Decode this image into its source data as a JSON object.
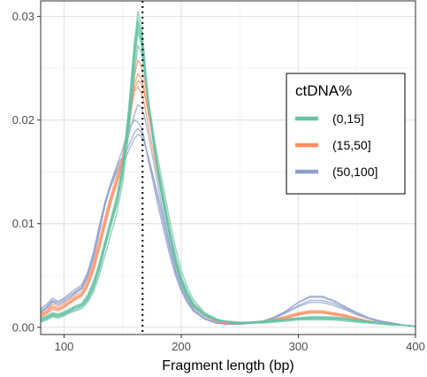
{
  "chart_data": {
    "type": "line",
    "title": "",
    "xlabel": "Fragment length (bp)",
    "ylabel": "",
    "xlim": [
      80,
      400
    ],
    "ylim": [
      -0.0007,
      0.0315
    ],
    "x_ticks": [
      100,
      200,
      300,
      400
    ],
    "y_ticks": [
      0.0,
      0.01,
      0.02,
      0.03
    ],
    "x_tick_labels": [
      "100",
      "200",
      "300",
      "400"
    ],
    "y_tick_labels": [
      "0.00",
      "0.01",
      "0.02",
      "0.03"
    ],
    "grid": true,
    "reference_line": {
      "x": 167,
      "style": "dotted",
      "color": "#000000"
    },
    "legend": {
      "title": "ctDNA%",
      "placement": "right-inside",
      "entries": [
        {
          "label": "(0,15]",
          "color": "#66c2a5"
        },
        {
          "label": "(15,50]",
          "color": "#fc8d62"
        },
        {
          "label": "(50,100]",
          "color": "#8da0cb"
        }
      ]
    },
    "x": [
      80,
      85,
      90,
      95,
      100,
      105,
      110,
      115,
      120,
      125,
      130,
      135,
      140,
      145,
      150,
      155,
      160,
      163,
      166,
      168,
      170,
      173,
      176,
      180,
      185,
      190,
      195,
      200,
      205,
      210,
      220,
      230,
      240,
      250,
      260,
      270,
      280,
      290,
      300,
      310,
      320,
      330,
      340,
      350,
      360,
      370,
      380,
      390,
      400
    ],
    "series": [
      {
        "group": "(0,15]",
        "values": [
          0.0007,
          0.0009,
          0.0012,
          0.0011,
          0.0013,
          0.0016,
          0.0019,
          0.0021,
          0.0028,
          0.004,
          0.0058,
          0.008,
          0.01,
          0.012,
          0.015,
          0.02,
          0.0265,
          0.0295,
          0.028,
          0.026,
          0.0235,
          0.0205,
          0.018,
          0.015,
          0.012,
          0.009,
          0.0065,
          0.0045,
          0.0032,
          0.0022,
          0.0012,
          0.0007,
          0.0005,
          0.0004,
          0.0004,
          0.0005,
          0.0006,
          0.0007,
          0.0008,
          0.0009,
          0.0009,
          0.0009,
          0.0008,
          0.0006,
          0.0005,
          0.0004,
          0.0003,
          0.0002,
          0.0001
        ]
      },
      {
        "group": "(0,15]",
        "values": [
          0.0006,
          0.0008,
          0.0011,
          0.001,
          0.0012,
          0.0015,
          0.0017,
          0.002,
          0.0026,
          0.0037,
          0.0055,
          0.0077,
          0.0098,
          0.0118,
          0.0148,
          0.0195,
          0.0255,
          0.0285,
          0.0272,
          0.0255,
          0.0232,
          0.0205,
          0.0182,
          0.0155,
          0.0126,
          0.0096,
          0.007,
          0.0049,
          0.0035,
          0.0024,
          0.0013,
          0.0008,
          0.0005,
          0.0004,
          0.0004,
          0.0005,
          0.0006,
          0.0007,
          0.0008,
          0.0008,
          0.0008,
          0.0008,
          0.0007,
          0.0006,
          0.0005,
          0.0004,
          0.0003,
          0.0002,
          0.0001
        ]
      },
      {
        "group": "(0,15]",
        "values": [
          0.0008,
          0.001,
          0.0013,
          0.0012,
          0.0014,
          0.0017,
          0.002,
          0.0022,
          0.003,
          0.0042,
          0.006,
          0.0082,
          0.0103,
          0.0124,
          0.0155,
          0.0205,
          0.027,
          0.0305,
          0.0292,
          0.027,
          0.0242,
          0.021,
          0.0183,
          0.015,
          0.0118,
          0.0087,
          0.0062,
          0.0043,
          0.003,
          0.002,
          0.0011,
          0.0007,
          0.0005,
          0.0004,
          0.0005,
          0.0006,
          0.0007,
          0.0008,
          0.0009,
          0.001,
          0.001,
          0.0009,
          0.0008,
          0.0007,
          0.0005,
          0.0004,
          0.0003,
          0.0002,
          0.0001
        ]
      },
      {
        "group": "(0,15]",
        "values": [
          0.0005,
          0.0007,
          0.001,
          0.0009,
          0.0011,
          0.0014,
          0.0016,
          0.0018,
          0.0024,
          0.0034,
          0.005,
          0.007,
          0.009,
          0.011,
          0.014,
          0.0185,
          0.0245,
          0.0272,
          0.0265,
          0.0252,
          0.0235,
          0.0212,
          0.019,
          0.0163,
          0.0134,
          0.0104,
          0.0077,
          0.0055,
          0.0039,
          0.0027,
          0.0014,
          0.0008,
          0.0005,
          0.0004,
          0.0004,
          0.0004,
          0.0005,
          0.0006,
          0.0007,
          0.0007,
          0.0007,
          0.0007,
          0.0006,
          0.0005,
          0.0004,
          0.0003,
          0.0002,
          0.0002,
          0.0001
        ]
      },
      {
        "group": "(0,15]",
        "values": [
          0.0007,
          0.0009,
          0.0012,
          0.0012,
          0.0013,
          0.0016,
          0.0019,
          0.0021,
          0.0027,
          0.0039,
          0.0057,
          0.0079,
          0.0101,
          0.0121,
          0.0151,
          0.0198,
          0.026,
          0.029,
          0.0276,
          0.0258,
          0.0236,
          0.0208,
          0.0184,
          0.0154,
          0.0123,
          0.0093,
          0.0067,
          0.0047,
          0.0033,
          0.0023,
          0.0012,
          0.0007,
          0.0005,
          0.0004,
          0.0004,
          0.0005,
          0.0006,
          0.0007,
          0.0008,
          0.0009,
          0.0009,
          0.0008,
          0.0008,
          0.0006,
          0.0005,
          0.0004,
          0.0003,
          0.0002,
          0.0001
        ]
      },
      {
        "group": "(0,15]",
        "values": [
          0.0009,
          0.0011,
          0.0014,
          0.0013,
          0.0015,
          0.0018,
          0.0021,
          0.0023,
          0.0031,
          0.0044,
          0.0062,
          0.0084,
          0.0105,
          0.0127,
          0.0158,
          0.021,
          0.0275,
          0.0298,
          0.0284,
          0.0264,
          0.0238,
          0.0206,
          0.0179,
          0.0147,
          0.0116,
          0.0086,
          0.0062,
          0.0043,
          0.0031,
          0.0021,
          0.0012,
          0.0007,
          0.0006,
          0.0005,
          0.0005,
          0.0006,
          0.0007,
          0.0008,
          0.0009,
          0.001,
          0.001,
          0.001,
          0.0009,
          0.0007,
          0.0006,
          0.0004,
          0.0003,
          0.0002,
          0.0001
        ]
      },
      {
        "group": "(15,50]",
        "values": [
          0.0012,
          0.0015,
          0.002,
          0.0018,
          0.0021,
          0.0025,
          0.0029,
          0.0032,
          0.0042,
          0.0058,
          0.008,
          0.0103,
          0.0125,
          0.0142,
          0.016,
          0.0195,
          0.0235,
          0.0245,
          0.024,
          0.0232,
          0.022,
          0.02,
          0.018,
          0.0152,
          0.012,
          0.0088,
          0.0062,
          0.0043,
          0.003,
          0.002,
          0.0011,
          0.0006,
          0.0004,
          0.0004,
          0.0004,
          0.0005,
          0.0007,
          0.001,
          0.0013,
          0.0015,
          0.0015,
          0.0013,
          0.0011,
          0.0008,
          0.0006,
          0.0004,
          0.0003,
          0.0002,
          0.0001
        ]
      },
      {
        "group": "(15,50]",
        "values": [
          0.001,
          0.0013,
          0.0017,
          0.0016,
          0.0019,
          0.0023,
          0.0027,
          0.003,
          0.0039,
          0.0054,
          0.0075,
          0.0098,
          0.012,
          0.0138,
          0.0158,
          0.0192,
          0.023,
          0.0238,
          0.0235,
          0.0228,
          0.0218,
          0.02,
          0.0182,
          0.0156,
          0.0124,
          0.0092,
          0.0066,
          0.0046,
          0.0032,
          0.0021,
          0.0011,
          0.0006,
          0.0004,
          0.0004,
          0.0004,
          0.0005,
          0.0006,
          0.0009,
          0.0012,
          0.0014,
          0.0014,
          0.0012,
          0.001,
          0.0008,
          0.0006,
          0.0004,
          0.0003,
          0.0002,
          0.0001
        ]
      },
      {
        "group": "(15,50]",
        "values": [
          0.0013,
          0.0016,
          0.0022,
          0.002,
          0.0023,
          0.0027,
          0.0031,
          0.0034,
          0.0045,
          0.0062,
          0.0085,
          0.0107,
          0.0128,
          0.0146,
          0.0165,
          0.02,
          0.0228,
          0.0232,
          0.0226,
          0.0218,
          0.0206,
          0.0188,
          0.017,
          0.0146,
          0.0118,
          0.0088,
          0.0063,
          0.0044,
          0.0031,
          0.0021,
          0.0011,
          0.0006,
          0.0004,
          0.0004,
          0.0005,
          0.0006,
          0.0008,
          0.0011,
          0.0014,
          0.0016,
          0.0016,
          0.0014,
          0.0012,
          0.0009,
          0.0006,
          0.0004,
          0.0003,
          0.0002,
          0.0001
        ]
      },
      {
        "group": "(15,50]",
        "values": [
          0.0011,
          0.0014,
          0.0019,
          0.0017,
          0.002,
          0.0024,
          0.0028,
          0.0031,
          0.004,
          0.0056,
          0.0078,
          0.01,
          0.0122,
          0.014,
          0.016,
          0.0196,
          0.0242,
          0.0258,
          0.0252,
          0.0242,
          0.0228,
          0.0206,
          0.0184,
          0.0155,
          0.0122,
          0.009,
          0.0064,
          0.0044,
          0.0031,
          0.0021,
          0.0011,
          0.0006,
          0.0004,
          0.0004,
          0.0004,
          0.0005,
          0.0007,
          0.0009,
          0.0012,
          0.0014,
          0.0014,
          0.0013,
          0.0011,
          0.0008,
          0.0006,
          0.0004,
          0.0003,
          0.0002,
          0.0001
        ]
      },
      {
        "group": "(50,100]",
        "values": [
          0.0018,
          0.0022,
          0.0028,
          0.0025,
          0.0028,
          0.0033,
          0.0037,
          0.0041,
          0.0053,
          0.0072,
          0.0098,
          0.0122,
          0.014,
          0.0155,
          0.0165,
          0.0185,
          0.0205,
          0.0215,
          0.0212,
          0.0206,
          0.0196,
          0.018,
          0.0162,
          0.0138,
          0.0108,
          0.0078,
          0.0054,
          0.0037,
          0.0025,
          0.0016,
          0.0008,
          0.0004,
          0.0003,
          0.0003,
          0.0004,
          0.0006,
          0.001,
          0.0016,
          0.0024,
          0.003,
          0.003,
          0.0026,
          0.002,
          0.0014,
          0.0009,
          0.0006,
          0.0004,
          0.0002,
          0.0001
        ]
      },
      {
        "group": "(50,100]",
        "values": [
          0.0016,
          0.002,
          0.0026,
          0.0024,
          0.0027,
          0.0031,
          0.0035,
          0.0039,
          0.005,
          0.0068,
          0.0093,
          0.0118,
          0.0138,
          0.0152,
          0.0162,
          0.0175,
          0.0188,
          0.0192,
          0.0188,
          0.0182,
          0.0172,
          0.0158,
          0.0144,
          0.0124,
          0.01,
          0.0075,
          0.0054,
          0.0038,
          0.0026,
          0.0017,
          0.0008,
          0.0004,
          0.0003,
          0.0003,
          0.0004,
          0.0006,
          0.001,
          0.0015,
          0.0021,
          0.0026,
          0.0026,
          0.0023,
          0.0018,
          0.0013,
          0.0009,
          0.0006,
          0.0004,
          0.0002,
          0.0001
        ]
      },
      {
        "group": "(50,100]",
        "values": [
          0.0015,
          0.0019,
          0.0025,
          0.0022,
          0.0025,
          0.0029,
          0.0033,
          0.0037,
          0.0048,
          0.0066,
          0.0092,
          0.0118,
          0.0138,
          0.0156,
          0.0172,
          0.0192,
          0.02,
          0.0198,
          0.0192,
          0.0184,
          0.0172,
          0.0156,
          0.014,
          0.0118,
          0.0094,
          0.007,
          0.005,
          0.0035,
          0.0024,
          0.0016,
          0.0008,
          0.0004,
          0.0003,
          0.0003,
          0.0004,
          0.0006,
          0.0009,
          0.0014,
          0.002,
          0.0024,
          0.0024,
          0.0021,
          0.0017,
          0.0012,
          0.0008,
          0.0005,
          0.0003,
          0.0002,
          0.0001
        ]
      },
      {
        "group": "(50,100]",
        "values": [
          0.0014,
          0.0018,
          0.0024,
          0.0022,
          0.0025,
          0.0029,
          0.0034,
          0.0038,
          0.005,
          0.007,
          0.0096,
          0.012,
          0.0136,
          0.015,
          0.0158,
          0.017,
          0.0182,
          0.0186,
          0.0184,
          0.018,
          0.0172,
          0.016,
          0.0146,
          0.0128,
          0.0105,
          0.008,
          0.0058,
          0.0041,
          0.0028,
          0.0018,
          0.0009,
          0.0005,
          0.0003,
          0.0003,
          0.0004,
          0.0006,
          0.001,
          0.0016,
          0.0024,
          0.0029,
          0.0029,
          0.0025,
          0.0019,
          0.0014,
          0.0009,
          0.0006,
          0.0004,
          0.0002,
          0.0001
        ]
      }
    ]
  }
}
